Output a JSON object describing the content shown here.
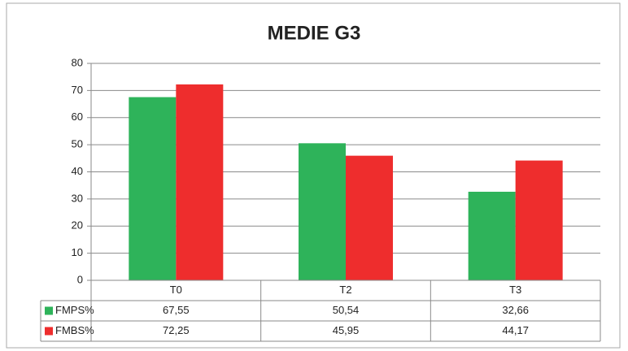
{
  "chart_data": {
    "type": "bar",
    "title": "MEDIE G3",
    "categories": [
      "T0",
      "T2",
      "T3"
    ],
    "series": [
      {
        "name": "FMPS%",
        "color": "#2eb35a",
        "values": [
          67.55,
          50.54,
          32.66
        ],
        "value_labels": [
          "67,55",
          "50,54",
          "32,66"
        ]
      },
      {
        "name": "FMBS%",
        "color": "#ee2d2d",
        "values": [
          72.25,
          45.95,
          44.17
        ],
        "value_labels": [
          "72,25",
          "45,95",
          "44,17"
        ]
      }
    ],
    "ylim": [
      0,
      80
    ],
    "yticks": [
      0,
      10,
      20,
      30,
      40,
      50,
      60,
      70,
      80
    ],
    "grid": true
  }
}
